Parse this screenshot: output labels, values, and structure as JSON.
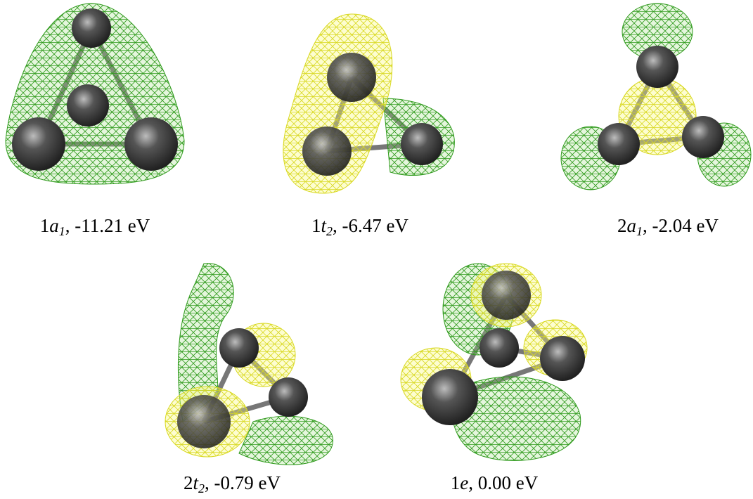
{
  "panels": [
    {
      "prefix": "1",
      "symbol": "a",
      "subscript": "1",
      "energy": ", -11.21 eV"
    },
    {
      "prefix": "1",
      "symbol": "t",
      "subscript": "2",
      "energy": ", -6.47 eV"
    },
    {
      "prefix": "2",
      "symbol": "a",
      "subscript": "1",
      "energy": ", -2.04 eV"
    },
    {
      "prefix": "2",
      "symbol": "t",
      "subscript": "2",
      "energy": ", -0.79 eV"
    },
    {
      "prefix": "1",
      "symbol": "e",
      "energy": ", 0.00 eV"
    }
  ]
}
